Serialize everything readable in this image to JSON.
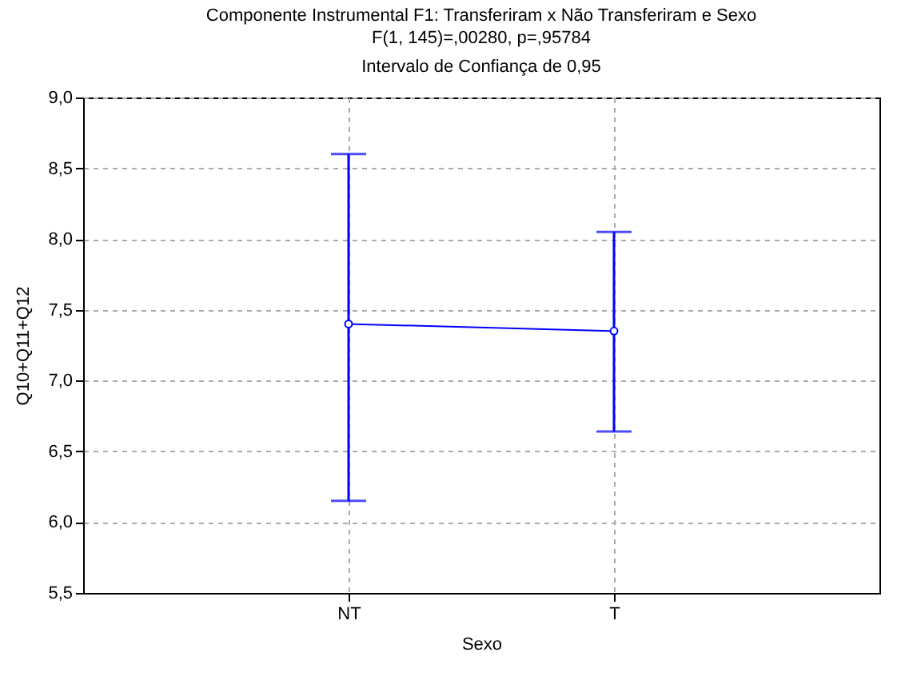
{
  "chart_data": {
    "type": "line",
    "title": "Componente Instrumental F1: Transferiram x Não Transferiram e Sexo",
    "subtitle": "F(1, 145)=,00280, p=,95784",
    "annotations": [
      "Intervalo de Confiança de 0,95"
    ],
    "xlabel": "Sexo",
    "ylabel": "Q10+Q11+Q12",
    "categories": [
      "NT",
      "T"
    ],
    "series": [
      {
        "color": "#0000ff",
        "values": [
          7.4,
          7.35
        ],
        "errors": [
          [
            6.15,
            8.6
          ],
          [
            6.64,
            8.05
          ]
        ]
      }
    ],
    "ylim": [
      5.5,
      9.0
    ],
    "yticks": [
      {
        "value": 5.5,
        "label": "5,5"
      },
      {
        "value": 6.0,
        "label": "6,0"
      },
      {
        "value": 6.5,
        "label": "6,5"
      },
      {
        "value": 7.0,
        "label": "7,0"
      },
      {
        "value": 7.5,
        "label": "7,5"
      },
      {
        "value": 8.0,
        "label": "8,0"
      },
      {
        "value": 8.5,
        "label": "8,5"
      },
      {
        "value": 9.0,
        "label": "9,0"
      }
    ],
    "grid": true,
    "marker": "circle",
    "line_style": "solid"
  }
}
